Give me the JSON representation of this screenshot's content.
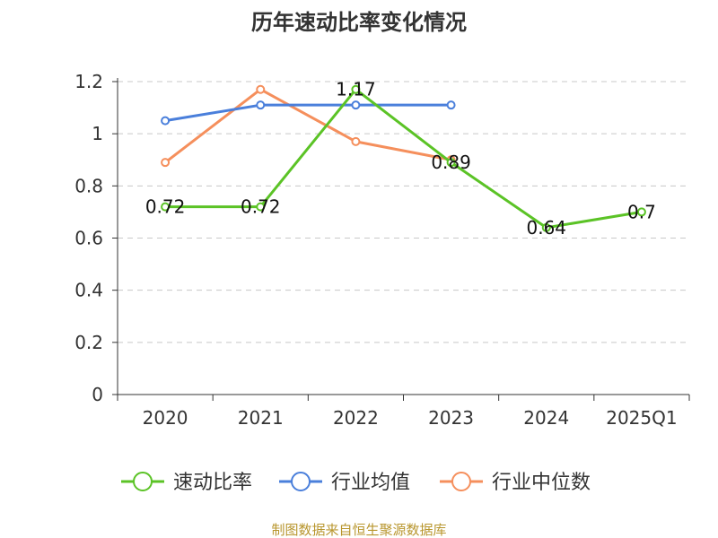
{
  "chart_data": {
    "type": "line",
    "title": "历年速动比率变化情况",
    "categories": [
      "2020",
      "2021",
      "2022",
      "2023",
      "2024",
      "2025Q1"
    ],
    "ylim": [
      0,
      1.2
    ],
    "yticks": [
      "0",
      "0.2",
      "0.4",
      "0.6",
      "0.8",
      "1",
      "1.2"
    ],
    "grid": true,
    "legend_position": "bottom",
    "series": [
      {
        "name": "速动比率",
        "color": "#5bc326",
        "values": [
          0.72,
          0.72,
          1.17,
          0.89,
          0.64,
          0.7
        ],
        "labels": [
          "0.72",
          "0.72",
          "1.17",
          "0.89",
          "0.64",
          "0.7"
        ]
      },
      {
        "name": "行业均值",
        "color": "#4a7fdb",
        "values": [
          1.05,
          1.11,
          1.11,
          1.11,
          null,
          null
        ]
      },
      {
        "name": "行业中位数",
        "color": "#f58f5c",
        "values": [
          0.89,
          1.17,
          0.97,
          0.9,
          null,
          null
        ]
      }
    ],
    "source": "制图数据来自恒生聚源数据库"
  }
}
